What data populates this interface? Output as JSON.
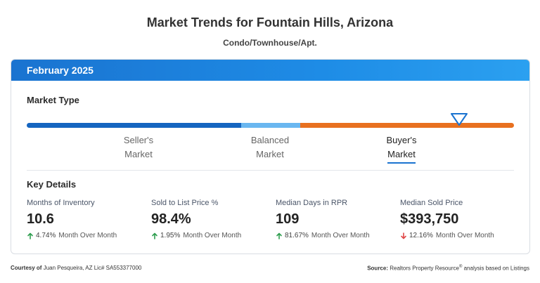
{
  "page": {
    "title": "Market Trends for Fountain Hills, Arizona",
    "subtitle": "Condo/Townhouse/Apt."
  },
  "card": {
    "period": "February 2025",
    "market_type_label": "Market Type",
    "market_types": [
      {
        "line1": "Seller's",
        "line2": "Market"
      },
      {
        "line1": "Balanced",
        "line2": "Market"
      },
      {
        "line1": "Buyer's",
        "line2": "Market"
      }
    ],
    "active_market_type": "Buyer's Market",
    "colors": {
      "seller": "#1565c0",
      "balanced": "#6ab7f0",
      "buyer": "#e8701f",
      "up": "#2e9e4f",
      "down": "#e04848"
    },
    "key_details_label": "Key Details",
    "stats": [
      {
        "label": "Months of Inventory",
        "value": "10.6",
        "change": "4.74%",
        "change_label": "Month Over Month",
        "direction": "up"
      },
      {
        "label": "Sold to List Price %",
        "value": "98.4%",
        "change": "1.95%",
        "change_label": "Month Over Month",
        "direction": "up"
      },
      {
        "label": "Median Days in RPR",
        "value": "109",
        "change": "81.67%",
        "change_label": "Month Over Month",
        "direction": "up"
      },
      {
        "label": "Median Sold Price",
        "value": "$393,750",
        "change": "12.16%",
        "change_label": "Month Over Month",
        "direction": "down"
      }
    ]
  },
  "footer": {
    "courtesy_label": "Courtesy of",
    "courtesy_text": "Juan Pesqueira, AZ Lic# SA553377000",
    "source_label": "Source:",
    "source_text_a": "Realtors Property Resource",
    "source_reg": "®",
    "source_text_b": " analysis based on Listings"
  }
}
